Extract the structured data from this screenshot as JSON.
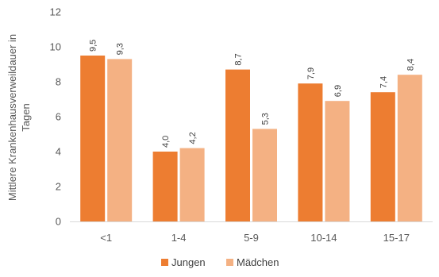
{
  "chart_data": {
    "type": "bar",
    "categories": [
      "<1",
      "1-4",
      "5-9",
      "10-14",
      "15-17"
    ],
    "series": [
      {
        "name": "Jungen",
        "color": "#ED7D31",
        "values": [
          9.5,
          4.0,
          8.7,
          7.9,
          7.4
        ],
        "value_labels": [
          "9,5",
          "4,0",
          "8,7",
          "7,9",
          "7,4"
        ]
      },
      {
        "name": "Mädchen",
        "color": "#F4B183",
        "values": [
          9.3,
          4.2,
          5.3,
          6.9,
          8.4
        ],
        "value_labels": [
          "9,3",
          "4,2",
          "5,3",
          "6,9",
          "8,4"
        ]
      }
    ],
    "ylabel_lines": [
      "Mittlere Krankenhausverweildauer in",
      "Tagen"
    ],
    "ylim": [
      0,
      12
    ],
    "yticks": [
      0,
      2,
      4,
      6,
      8,
      10,
      12
    ],
    "grid": false,
    "legend_position": "bottom-center"
  }
}
